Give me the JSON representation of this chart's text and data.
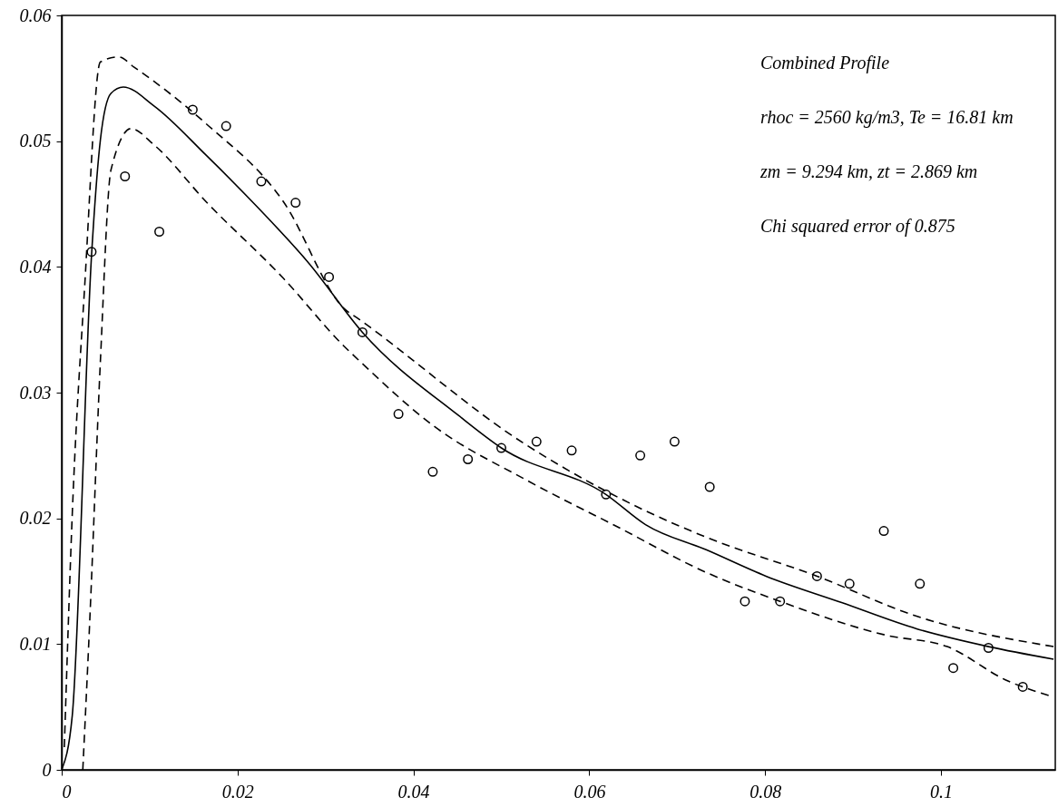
{
  "chart_data": {
    "type": "line",
    "xlim": [
      0,
      0.113
    ],
    "xticks": [
      0,
      0.02,
      0.04,
      0.06,
      0.08,
      0.1
    ],
    "ylim": [
      0,
      0.06
    ],
    "yticks": [
      0,
      0.01,
      0.02,
      0.03,
      0.04,
      0.05,
      0.06
    ],
    "grid": false,
    "annotations": [
      "Combined Profile",
      "rhoc = 2560 kg/m3, Te = 16.81 km",
      "zm = 9.294 km, zt = 2.869 km",
      "Chi squared error of 0.875"
    ],
    "series": [
      {
        "type": "scatter",
        "marker": "circle",
        "color": "#000000",
        "x": [
          0.0034,
          0.0072,
          0.0111,
          0.0149,
          0.0187,
          0.0227,
          0.0266,
          0.0304,
          0.0342,
          0.0383,
          0.0422,
          0.0462,
          0.05,
          0.054,
          0.058,
          0.0619,
          0.0658,
          0.0697,
          0.0737,
          0.0777,
          0.0817,
          0.0859,
          0.0896,
          0.0935,
          0.0976,
          0.1014,
          0.1054,
          0.1093
        ],
        "values": [
          0.0412,
          0.0472,
          0.0428,
          0.0525,
          0.0512,
          0.0468,
          0.0451,
          0.0392,
          0.0348,
          0.0283,
          0.0237,
          0.0247,
          0.0256,
          0.0261,
          0.0254,
          0.0219,
          0.025,
          0.0261,
          0.0225,
          0.0134,
          0.0134,
          0.0154,
          0.0148,
          0.019,
          0.0148,
          0.0081,
          0.0097,
          0.0066
        ]
      },
      {
        "type": "line",
        "line_style": "solid",
        "color": "#000000",
        "x": [
          0,
          0.0012,
          0.0034,
          0.0044,
          0.0056,
          0.007,
          0.0105,
          0.0164,
          0.0222,
          0.0281,
          0.0342,
          0.0451,
          0.05,
          0.0619,
          0.0664,
          0.0733,
          0.0801,
          0.0887,
          0.0973,
          0.1054,
          0.1128
        ],
        "values": [
          0,
          0.0043,
          0.041,
          0.0501,
          0.0538,
          0.0543,
          0.0528,
          0.0489,
          0.0448,
          0.0403,
          0.0348,
          0.0282,
          0.0256,
          0.0219,
          0.0195,
          0.0175,
          0.0154,
          0.0133,
          0.0112,
          0.0098,
          0.0088
        ]
      },
      {
        "type": "line",
        "line_style": "dashed",
        "color": "#000000",
        "x": [
          0.0003,
          0.0012,
          0.0026,
          0.0044,
          0.0065,
          0.0082,
          0.0164,
          0.0252,
          0.0321,
          0.0339,
          0.0527,
          0.0664,
          0.0733,
          0.0859,
          0.0973,
          0.1128
        ],
        "values": [
          0.0018,
          0.0203,
          0.0383,
          0.0563,
          0.0567,
          0.0559,
          0.0514,
          0.0452,
          0.0367,
          0.0358,
          0.0259,
          0.0206,
          0.0185,
          0.0154,
          0.0122,
          0.0098
        ]
      },
      {
        "type": "line",
        "line_style": "dashed",
        "color": "#000000",
        "x": [
          0.0024,
          0.0032,
          0.0044,
          0.0056,
          0.0079,
          0.0105,
          0.0164,
          0.0252,
          0.0321,
          0.0339,
          0.0424,
          0.0527,
          0.063,
          0.0733,
          0.0817,
          0.0938,
          0.1007,
          0.1075,
          0.1128
        ],
        "values": [
          0,
          0.012,
          0.0325,
          0.0477,
          0.051,
          0.0497,
          0.0452,
          0.0391,
          0.0337,
          0.0325,
          0.0273,
          0.0231,
          0.0194,
          0.0157,
          0.0134,
          0.0107,
          0.0098,
          0.0071,
          0.0058
        ]
      }
    ]
  }
}
